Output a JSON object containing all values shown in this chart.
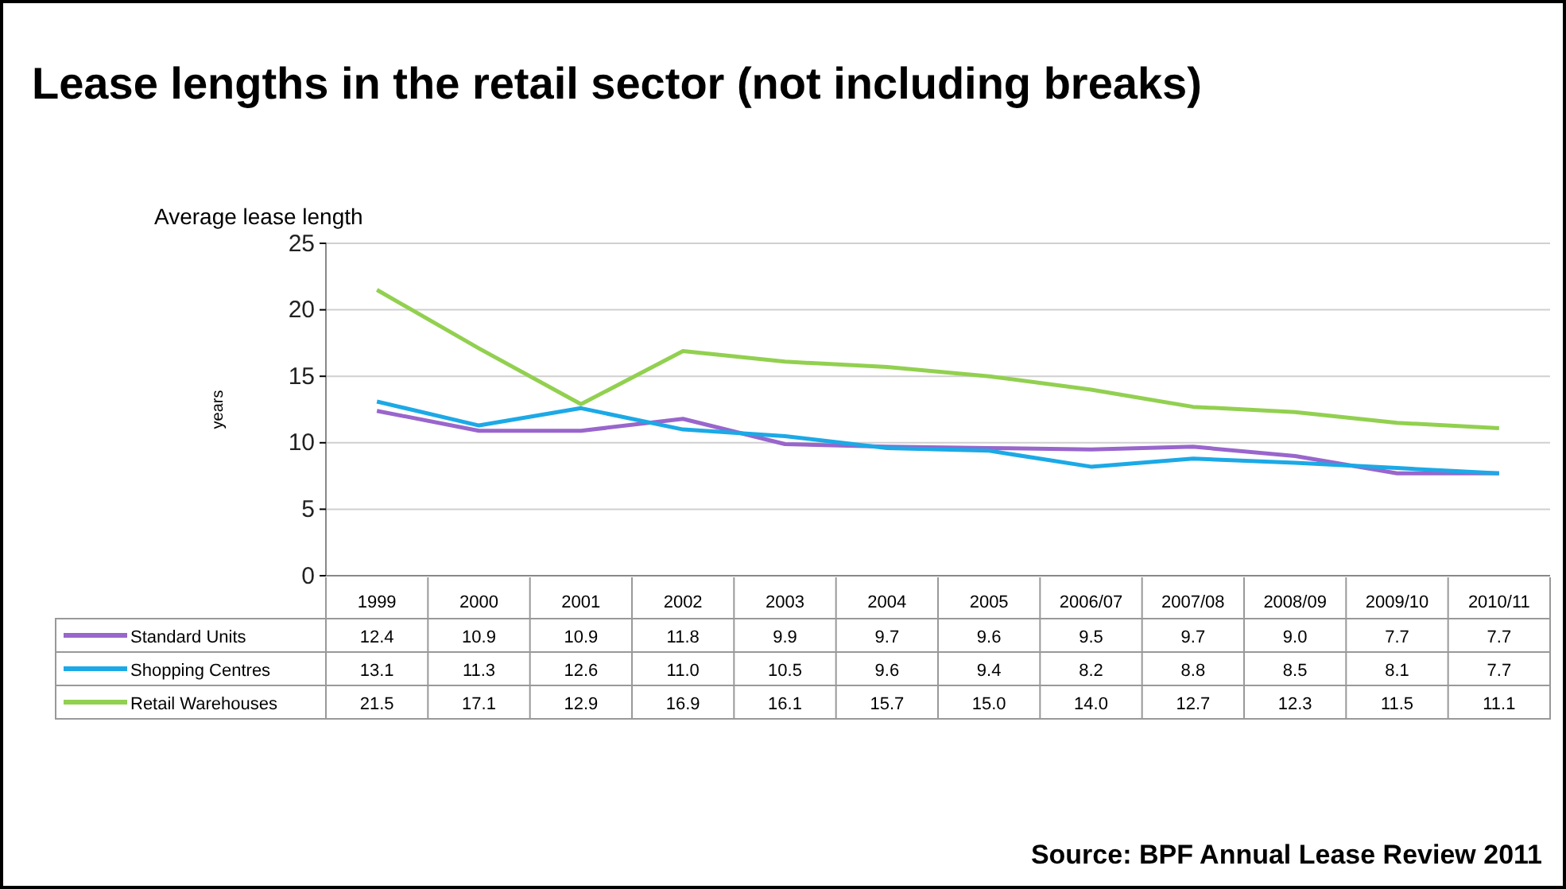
{
  "chart_data": {
    "type": "line",
    "title": "Lease lengths in the retail sector (not including breaks)",
    "ylabel": "years",
    "annotations": [
      "Average lease length",
      "Source: BPF Annual Lease Review 2011"
    ],
    "categories": [
      "1999",
      "2000",
      "2001",
      "2002",
      "2003",
      "2004",
      "2005",
      "2006/07",
      "2007/08",
      "2008/09",
      "2009/10",
      "2010/11"
    ],
    "series": [
      {
        "name": "Standard Units",
        "color": "#9966cc",
        "values": [
          12.4,
          10.9,
          10.9,
          11.8,
          9.9,
          9.7,
          9.6,
          9.5,
          9.7,
          9.0,
          7.7,
          7.7
        ],
        "value_labels": [
          "12.4",
          "10.9",
          "10.9",
          "11.8",
          "9.9",
          "9.7",
          "9.6",
          "9.5",
          "9.7",
          "9.0",
          "7.7",
          "7.7"
        ]
      },
      {
        "name": "Shopping Centres",
        "color": "#1ca9e6",
        "values": [
          13.1,
          11.3,
          12.6,
          11.0,
          10.5,
          9.6,
          9.4,
          8.2,
          8.8,
          8.5,
          8.1,
          7.7
        ],
        "value_labels": [
          "13.1",
          "11.3",
          "12.6",
          "11.0",
          "10.5",
          "9.6",
          "9.4",
          "8.2",
          "8.8",
          "8.5",
          "8.1",
          "7.7"
        ]
      },
      {
        "name": "Retail Warehouses",
        "color": "#92d050",
        "values": [
          21.5,
          17.1,
          12.9,
          16.9,
          16.1,
          15.7,
          15.0,
          14.0,
          12.7,
          12.3,
          11.5,
          11.1
        ],
        "value_labels": [
          "21.5",
          "17.1",
          "12.9",
          "16.9",
          "16.1",
          "15.7",
          "15.0",
          "14.0",
          "12.7",
          "12.3",
          "11.5",
          "11.1"
        ]
      }
    ],
    "ylim": [
      0,
      25
    ],
    "yticks": [
      0,
      5,
      10,
      15,
      20,
      25
    ],
    "grid": "y",
    "legend": "bottom",
    "marker": "none",
    "line_style": "solid"
  }
}
